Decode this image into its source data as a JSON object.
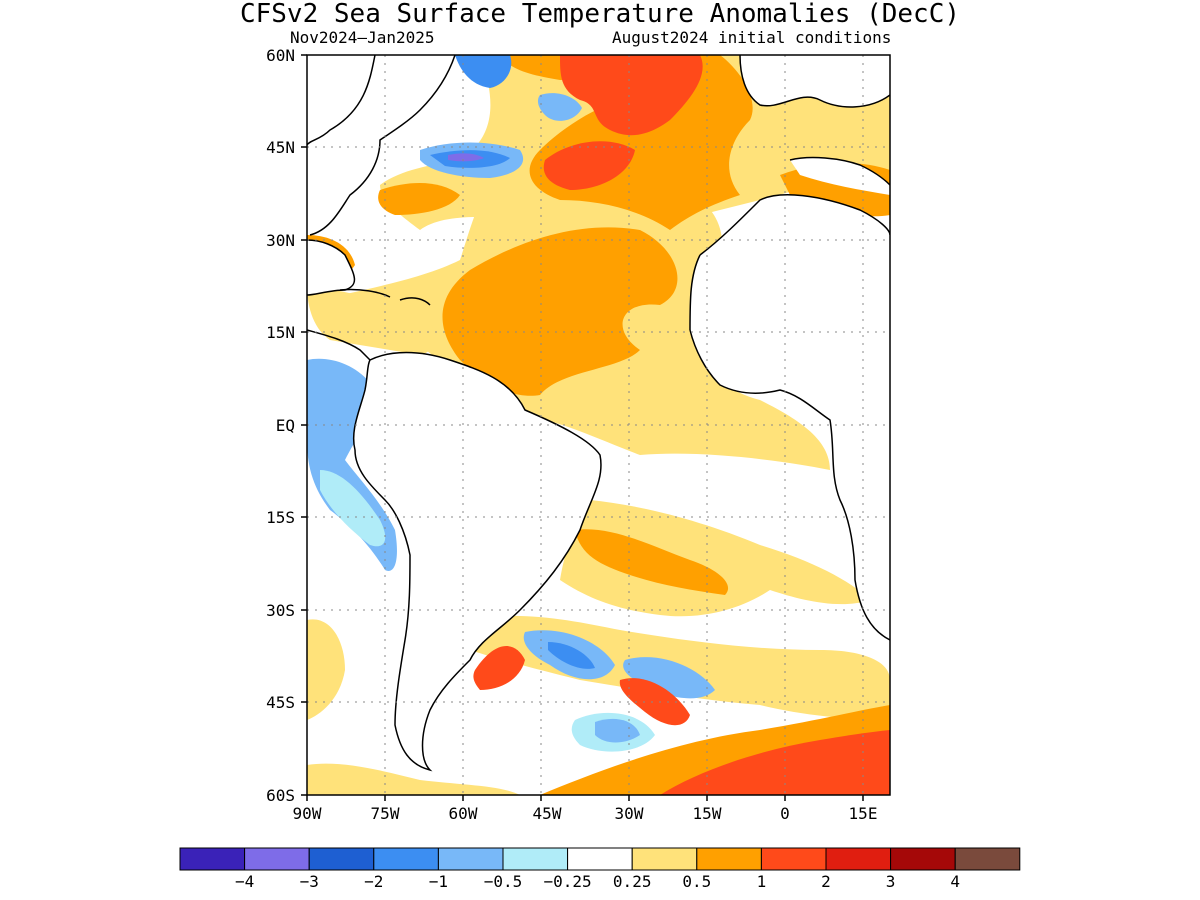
{
  "header": {
    "title": "CFSv2 Sea Surface Temperature Anomalies (DecC)",
    "period": "Nov2024–Jan2025",
    "init": "August2024 initial conditions"
  },
  "map": {
    "y_axis_labels": [
      "60N",
      "45N",
      "30N",
      "15N",
      "EQ",
      "15S",
      "30S",
      "45S",
      "60S"
    ],
    "x_axis_labels": [
      "90W",
      "75W",
      "60W",
      "45W",
      "30W",
      "15W",
      "0",
      "15E"
    ]
  },
  "colorbar": {
    "colors": [
      "#3a22b8",
      "#7e6ce8",
      "#1e5fd2",
      "#3c8ef2",
      "#78b8f8",
      "#b0ecf8",
      "#ffffff",
      "#ffe27a",
      "#ffa000",
      "#ff4a1a",
      "#e01e10",
      "#a50808",
      "#7a4a3c"
    ],
    "tick_labels": [
      "−4",
      "−3",
      "−2",
      "−1",
      "−0.5",
      "−0.25",
      "0.25",
      "0.5",
      "1",
      "2",
      "3",
      "4"
    ]
  }
}
